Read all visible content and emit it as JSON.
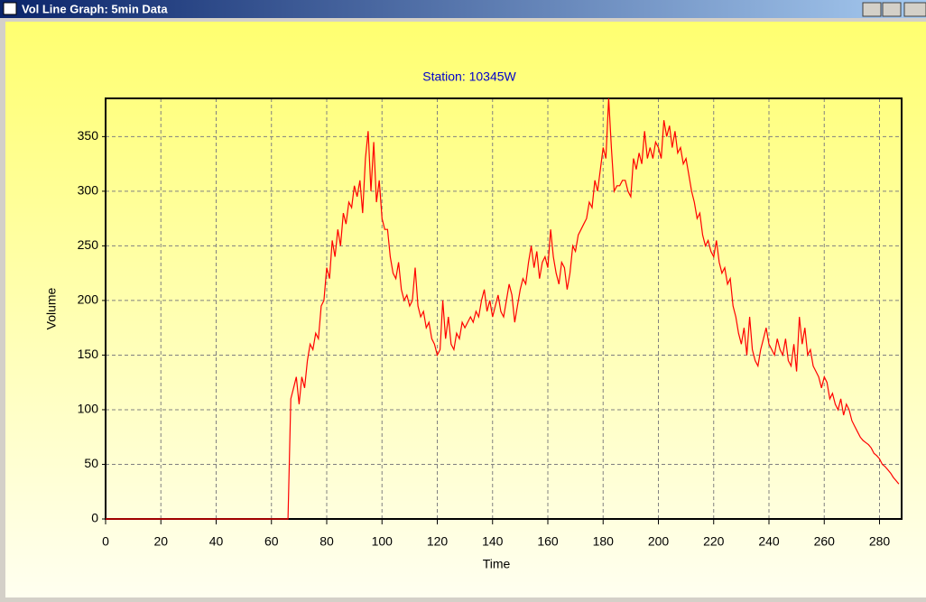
{
  "window": {
    "title": "Vol Line Graph: 5min Data"
  },
  "chart_data": {
    "type": "line",
    "title": "Station:  10345W",
    "xlabel": "Time",
    "ylabel": "Volume",
    "xlim": [
      0,
      288
    ],
    "ylim": [
      0,
      385
    ],
    "xticks": [
      0,
      20,
      40,
      60,
      80,
      100,
      120,
      140,
      160,
      180,
      200,
      220,
      240,
      260,
      280
    ],
    "yticks": [
      0,
      50,
      100,
      150,
      200,
      250,
      300,
      350
    ],
    "grid": true,
    "x": [
      0,
      1,
      2,
      3,
      4,
      5,
      6,
      7,
      8,
      9,
      10,
      11,
      12,
      13,
      14,
      15,
      16,
      17,
      18,
      19,
      20,
      21,
      22,
      23,
      24,
      25,
      26,
      27,
      28,
      29,
      30,
      31,
      32,
      33,
      34,
      35,
      36,
      37,
      38,
      39,
      40,
      41,
      42,
      43,
      44,
      45,
      46,
      47,
      48,
      49,
      50,
      51,
      52,
      53,
      54,
      55,
      56,
      57,
      58,
      59,
      60,
      61,
      62,
      63,
      64,
      65,
      66,
      67,
      68,
      69,
      70,
      71,
      72,
      73,
      74,
      75,
      76,
      77,
      78,
      79,
      80,
      81,
      82,
      83,
      84,
      85,
      86,
      87,
      88,
      89,
      90,
      91,
      92,
      93,
      94,
      95,
      96,
      97,
      98,
      99,
      100,
      101,
      102,
      103,
      104,
      105,
      106,
      107,
      108,
      109,
      110,
      111,
      112,
      113,
      114,
      115,
      116,
      117,
      118,
      119,
      120,
      121,
      122,
      123,
      124,
      125,
      126,
      127,
      128,
      129,
      130,
      131,
      132,
      133,
      134,
      135,
      136,
      137,
      138,
      139,
      140,
      141,
      142,
      143,
      144,
      145,
      146,
      147,
      148,
      149,
      150,
      151,
      152,
      153,
      154,
      155,
      156,
      157,
      158,
      159,
      160,
      161,
      162,
      163,
      164,
      165,
      166,
      167,
      168,
      169,
      170,
      171,
      172,
      173,
      174,
      175,
      176,
      177,
      178,
      179,
      180,
      181,
      182,
      183,
      184,
      185,
      186,
      187,
      188,
      189,
      190,
      191,
      192,
      193,
      194,
      195,
      196,
      197,
      198,
      199,
      200,
      201,
      202,
      203,
      204,
      205,
      206,
      207,
      208,
      209,
      210,
      211,
      212,
      213,
      214,
      215,
      216,
      217,
      218,
      219,
      220,
      221,
      222,
      223,
      224,
      225,
      226,
      227,
      228,
      229,
      230,
      231,
      232,
      233,
      234,
      235,
      236,
      237,
      238,
      239,
      240,
      241,
      242,
      243,
      244,
      245,
      246,
      247,
      248,
      249,
      250,
      251,
      252,
      253,
      254,
      255,
      256,
      257,
      258,
      259,
      260,
      261,
      262,
      263,
      264,
      265,
      266,
      267,
      268,
      269,
      270,
      271,
      272,
      273,
      274,
      275,
      276,
      277,
      278,
      279,
      280,
      281,
      282,
      283,
      284,
      285,
      286,
      287
    ],
    "series": [
      {
        "color": "#ff0000",
        "values": [
          0,
          0,
          0,
          0,
          0,
          0,
          0,
          0,
          0,
          0,
          0,
          0,
          0,
          0,
          0,
          0,
          0,
          0,
          0,
          0,
          0,
          0,
          0,
          0,
          0,
          0,
          0,
          0,
          0,
          0,
          0,
          0,
          0,
          0,
          0,
          0,
          0,
          0,
          0,
          0,
          0,
          0,
          0,
          0,
          0,
          0,
          0,
          0,
          0,
          0,
          0,
          0,
          0,
          0,
          0,
          0,
          0,
          0,
          0,
          0,
          0,
          0,
          0,
          0,
          0,
          0,
          0,
          110,
          120,
          130,
          105,
          130,
          120,
          145,
          160,
          155,
          170,
          165,
          195,
          200,
          230,
          220,
          255,
          240,
          265,
          250,
          280,
          270,
          290,
          285,
          305,
          295,
          310,
          280,
          330,
          355,
          300,
          345,
          290,
          310,
          275,
          265,
          265,
          240,
          225,
          220,
          235,
          210,
          200,
          205,
          195,
          200,
          230,
          195,
          185,
          190,
          175,
          180,
          165,
          160,
          150,
          155,
          200,
          165,
          185,
          160,
          155,
          170,
          165,
          180,
          175,
          180,
          185,
          180,
          190,
          185,
          200,
          210,
          190,
          200,
          185,
          195,
          205,
          190,
          185,
          200,
          215,
          205,
          180,
          195,
          210,
          220,
          215,
          235,
          250,
          230,
          245,
          220,
          235,
          240,
          230,
          265,
          240,
          225,
          215,
          235,
          230,
          210,
          225,
          250,
          245,
          260,
          265,
          270,
          275,
          290,
          285,
          310,
          300,
          320,
          340,
          330,
          385,
          340,
          300,
          305,
          305,
          310,
          310,
          300,
          295,
          330,
          320,
          335,
          325,
          355,
          330,
          340,
          330,
          345,
          340,
          330,
          365,
          350,
          360,
          340,
          355,
          335,
          340,
          325,
          330,
          315,
          300,
          290,
          275,
          280,
          260,
          250,
          255,
          245,
          240,
          255,
          235,
          225,
          230,
          215,
          220,
          195,
          185,
          170,
          160,
          175,
          150,
          185,
          155,
          145,
          140,
          155,
          165,
          175,
          160,
          155,
          150,
          165,
          155,
          150,
          165,
          145,
          140,
          160,
          135,
          185,
          160,
          175,
          150,
          155,
          140,
          135,
          130,
          120,
          130,
          125,
          110,
          115,
          105,
          100,
          110,
          95,
          105,
          100,
          90,
          85,
          80,
          75,
          72,
          70,
          68,
          65,
          60,
          58,
          55,
          50,
          48,
          45,
          42,
          38,
          35,
          32
        ]
      }
    ]
  }
}
